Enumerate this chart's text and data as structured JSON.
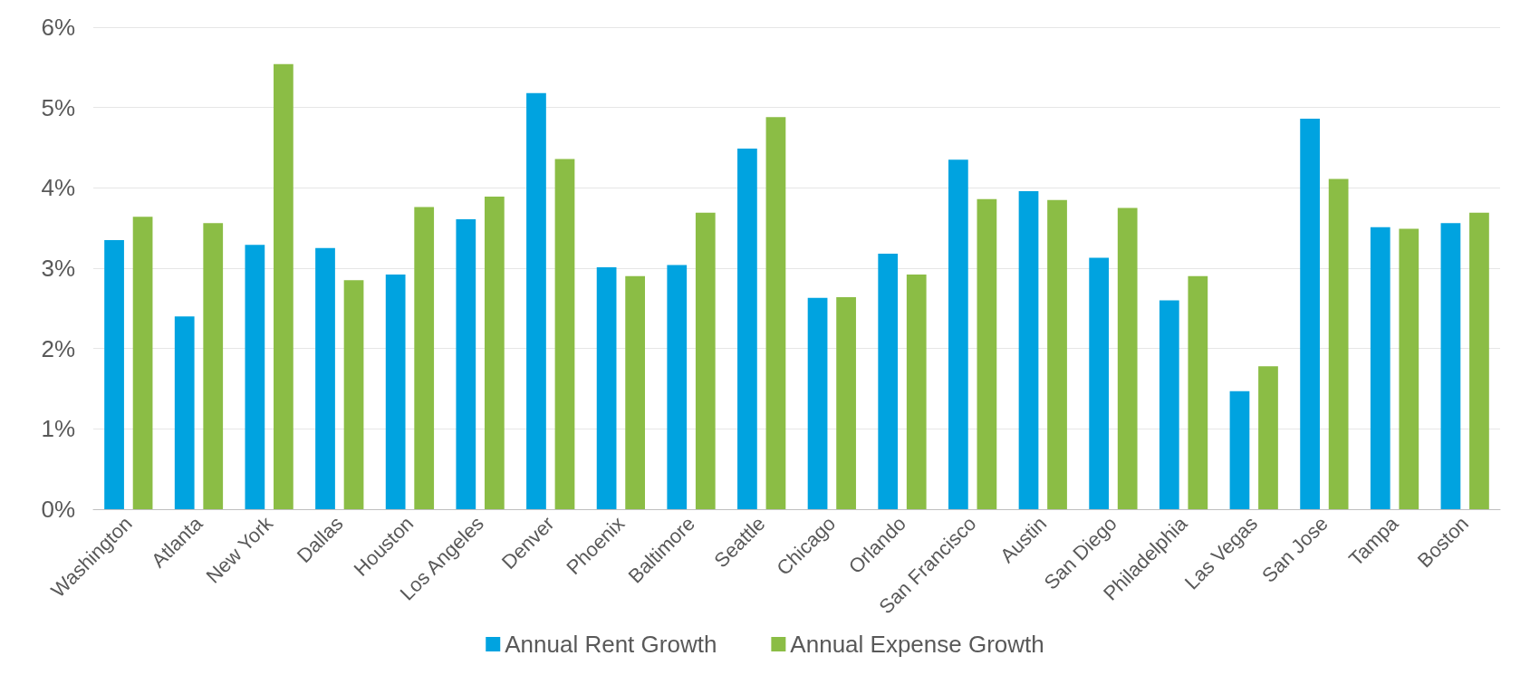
{
  "chart_data": {
    "type": "bar",
    "categories": [
      "Washington",
      "Atlanta",
      "New York",
      "Dallas",
      "Houston",
      "Los Angeles",
      "Denver",
      "Phoenix",
      "Baltimore",
      "Seattle",
      "Chicago",
      "Orlando",
      "San Francisco",
      "Austin",
      "San Diego",
      "Philadelphia",
      "Las Vegas",
      "San Jose",
      "Tampa",
      "Boston"
    ],
    "series": [
      {
        "name": "Annual Rent Growth",
        "color": "#00a3e0",
        "values": [
          3.35,
          2.4,
          3.29,
          3.25,
          2.92,
          3.61,
          5.18,
          3.01,
          3.04,
          4.49,
          2.63,
          3.18,
          4.35,
          3.96,
          3.13,
          2.6,
          1.47,
          4.86,
          3.51,
          3.56
        ]
      },
      {
        "name": "Annual Expense Growth",
        "color": "#8bbd45",
        "values": [
          3.64,
          3.56,
          5.54,
          2.85,
          3.76,
          3.89,
          4.36,
          2.9,
          3.69,
          4.88,
          2.64,
          2.92,
          3.86,
          3.85,
          3.75,
          2.9,
          1.78,
          4.11,
          3.49,
          3.69
        ]
      }
    ],
    "ylim": [
      0,
      6
    ],
    "yticks": [
      {
        "value": 0,
        "label": "0%"
      },
      {
        "value": 1,
        "label": "1%"
      },
      {
        "value": 2,
        "label": "2%"
      },
      {
        "value": 3,
        "label": "3%"
      },
      {
        "value": 4,
        "label": "4%"
      },
      {
        "value": 5,
        "label": "5%"
      },
      {
        "value": 6,
        "label": "6%"
      }
    ],
    "grid": "y",
    "legend": "bottom"
  }
}
